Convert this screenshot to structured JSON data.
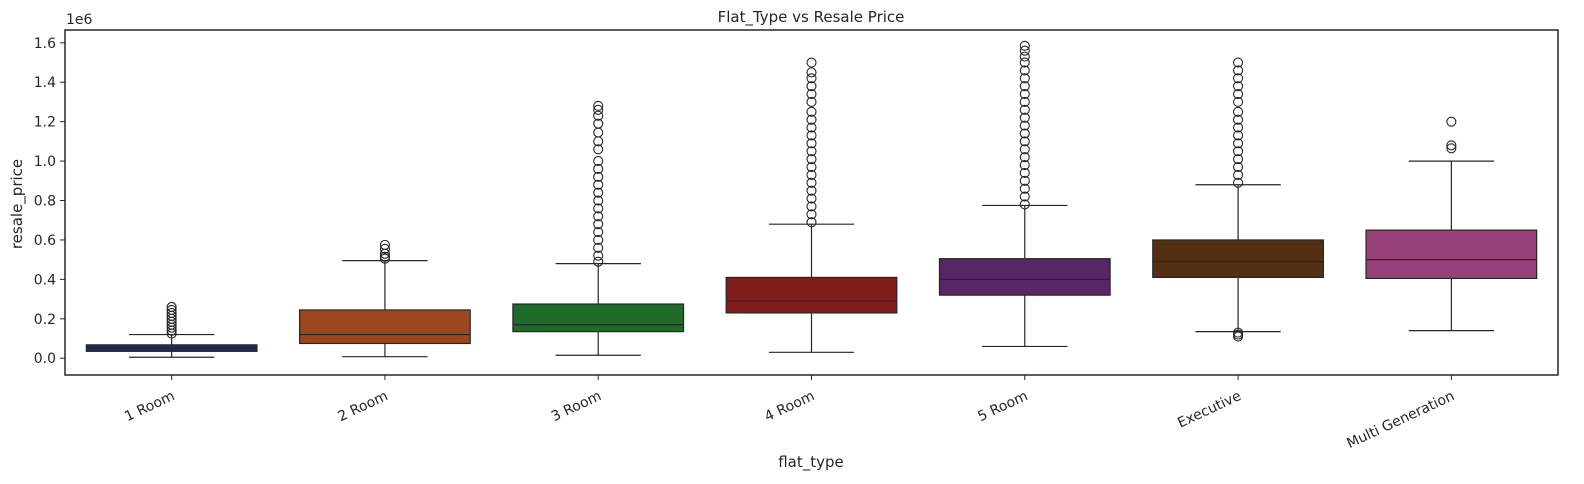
{
  "chart_data": {
    "type": "box",
    "title": "Flat_Type vs Resale Price",
    "xlabel": "flat_type",
    "ylabel": "resale_price",
    "y_offset_text": "1e6",
    "ylim": [
      -0.085,
      1.665
    ],
    "yticks": [
      0.0,
      0.2,
      0.4,
      0.6,
      0.8,
      1.0,
      1.2,
      1.4,
      1.6
    ],
    "ytick_labels": [
      "0.0",
      "0.2",
      "0.4",
      "0.6",
      "0.8",
      "1.0",
      "1.2",
      "1.4",
      "1.6"
    ],
    "grid": false,
    "categories": [
      "1 Room",
      "2 Room",
      "3 Room",
      "4 Room",
      "5 Room",
      "Executive",
      "Multi Generation"
    ],
    "boxes": [
      {
        "category": "1 Room",
        "color": "#1c2a5e",
        "whisker_low": 0.005,
        "q1": 0.035,
        "median": 0.052,
        "q3": 0.068,
        "whisker_high": 0.12,
        "outliers": [
          0.125,
          0.14,
          0.155,
          0.17,
          0.185,
          0.2,
          0.215,
          0.23,
          0.245,
          0.26
        ]
      },
      {
        "category": "2 Room",
        "color": "#9c4720",
        "whisker_low": 0.008,
        "q1": 0.075,
        "median": 0.12,
        "q3": 0.245,
        "whisker_high": 0.495,
        "outliers": [
          0.505,
          0.515,
          0.53,
          0.555,
          0.575
        ]
      },
      {
        "category": "3 Room",
        "color": "#1f6b2a",
        "whisker_low": 0.015,
        "q1": 0.135,
        "median": 0.17,
        "q3": 0.275,
        "whisker_high": 0.48,
        "outliers": [
          0.49,
          0.52,
          0.56,
          0.6,
          0.64,
          0.68,
          0.72,
          0.76,
          0.8,
          0.84,
          0.88,
          0.92,
          0.96,
          1.0,
          1.06,
          1.1,
          1.145,
          1.19,
          1.23,
          1.26,
          1.28
        ]
      },
      {
        "category": "4 Room",
        "color": "#821c1a",
        "whisker_low": 0.03,
        "q1": 0.23,
        "median": 0.29,
        "q3": 0.41,
        "whisker_high": 0.68,
        "outliers": [
          0.69,
          0.73,
          0.77,
          0.81,
          0.85,
          0.89,
          0.93,
          0.97,
          1.01,
          1.05,
          1.09,
          1.13,
          1.17,
          1.21,
          1.25,
          1.3,
          1.34,
          1.38,
          1.42,
          1.45,
          1.5
        ]
      },
      {
        "category": "5 Room",
        "color": "#582566",
        "whisker_low": 0.06,
        "q1": 0.32,
        "median": 0.4,
        "q3": 0.505,
        "whisker_high": 0.775,
        "outliers": [
          0.78,
          0.82,
          0.86,
          0.9,
          0.94,
          0.98,
          1.02,
          1.06,
          1.1,
          1.14,
          1.18,
          1.22,
          1.26,
          1.3,
          1.34,
          1.38,
          1.42,
          1.46,
          1.5,
          1.53,
          1.56,
          1.585
        ]
      },
      {
        "category": "Executive",
        "color": "#532f14",
        "whisker_low": 0.135,
        "q1": 0.41,
        "median": 0.49,
        "q3": 0.6,
        "whisker_high": 0.88,
        "outliers": [
          0.11,
          0.12,
          0.13,
          0.89,
          0.93,
          0.97,
          1.01,
          1.05,
          1.09,
          1.13,
          1.17,
          1.21,
          1.25,
          1.3,
          1.34,
          1.38,
          1.42,
          1.46,
          1.5
        ]
      },
      {
        "category": "Multi Generation",
        "color": "#974079",
        "whisker_low": 0.14,
        "q1": 0.405,
        "median": 0.5,
        "q3": 0.65,
        "whisker_high": 1.0,
        "outliers": [
          1.065,
          1.08,
          1.2
        ]
      }
    ]
  }
}
